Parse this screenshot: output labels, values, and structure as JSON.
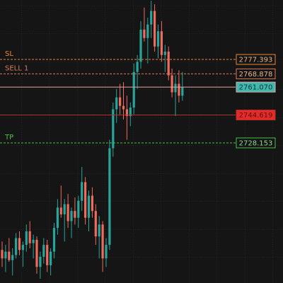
{
  "chart_data": {
    "type": "candlestick",
    "ylim": [
      2645.5,
      2812.45
    ],
    "up_color": "#26a69a",
    "down_color": "#ef6b5e",
    "open": [
      2665,
      2660,
      2664,
      2659,
      2662,
      2672,
      2665,
      2668,
      2676,
      2669,
      2671,
      2655,
      2661,
      2668,
      2656,
      2664,
      2678,
      2690,
      2686,
      2692,
      2682,
      2688,
      2684,
      2694,
      2705,
      2684,
      2697,
      2688,
      2673,
      2680,
      2660,
      2668,
      2725,
      2748,
      2755,
      2750,
      2748,
      2744,
      2749,
      2770,
      2776,
      2795,
      2790,
      2798,
      2806,
      2785,
      2794,
      2780,
      2782,
      2768,
      2758,
      2763,
      2756
    ],
    "high": [
      2670,
      2668,
      2672,
      2666,
      2675,
      2676,
      2670,
      2680,
      2682,
      2674,
      2673,
      2664,
      2672,
      2671,
      2666,
      2681,
      2695,
      2703,
      2695,
      2698,
      2690,
      2696,
      2697,
      2714,
      2708,
      2700,
      2702,
      2692,
      2685,
      2682,
      2672,
      2730,
      2752,
      2760,
      2763,
      2764,
      2756,
      2752,
      2775,
      2780,
      2800,
      2808,
      2802,
      2812,
      2810,
      2798,
      2800,
      2786,
      2785,
      2772,
      2768,
      2771,
      2770
    ],
    "low": [
      2655,
      2652,
      2658,
      2650,
      2660,
      2662,
      2655,
      2664,
      2666,
      2660,
      2651,
      2648,
      2657,
      2652,
      2650,
      2660,
      2674,
      2684,
      2670,
      2678,
      2672,
      2680,
      2678,
      2688,
      2680,
      2676,
      2684,
      2668,
      2660,
      2652,
      2655,
      2665,
      2720,
      2740,
      2745,
      2742,
      2730,
      2738,
      2745,
      2760,
      2772,
      2788,
      2775,
      2790,
      2782,
      2778,
      2776,
      2770,
      2765,
      2755,
      2744,
      2752,
      2753
    ],
    "close": [
      2660,
      2664,
      2659,
      2662,
      2672,
      2665,
      2668,
      2676,
      2669,
      2671,
      2655,
      2661,
      2668,
      2656,
      2664,
      2678,
      2690,
      2686,
      2692,
      2682,
      2688,
      2684,
      2694,
      2705,
      2684,
      2697,
      2688,
      2673,
      2680,
      2660,
      2668,
      2725,
      2748,
      2755,
      2750,
      2748,
      2744,
      2749,
      2770,
      2776,
      2795,
      2790,
      2798,
      2806,
      2785,
      2794,
      2780,
      2782,
      2768,
      2758,
      2763,
      2756,
      2761
    ],
    "levels": [
      {
        "name": "SL",
        "price": 2777.393,
        "color": "#e8873a",
        "style": "dashed",
        "label_fill": "#151515",
        "label_text": "#e8b08a"
      },
      {
        "name": "SELL 1",
        "price": 2768.878,
        "color": "#d9795a",
        "style": "dashed",
        "label_fill": "#151515",
        "label_text": "#e8b08a"
      },
      {
        "price": {
          "value": 2761.07,
          "label": "2761.070"
        },
        "color": "#e8a8a8",
        "style": "solid",
        "label_fill": "#3fb8b0",
        "label_text": "#10302e"
      },
      {
        "price": 2744.619,
        "color": "#b5302a",
        "style": "solid",
        "label_fill": "#e52a2a",
        "label_text": "#5a0c0c"
      },
      {
        "name": "TP",
        "price": 2728.153,
        "color": "#4cc04c",
        "style": "dashed",
        "label_fill": "#151515",
        "label_text": "#8fd88f"
      }
    ]
  }
}
